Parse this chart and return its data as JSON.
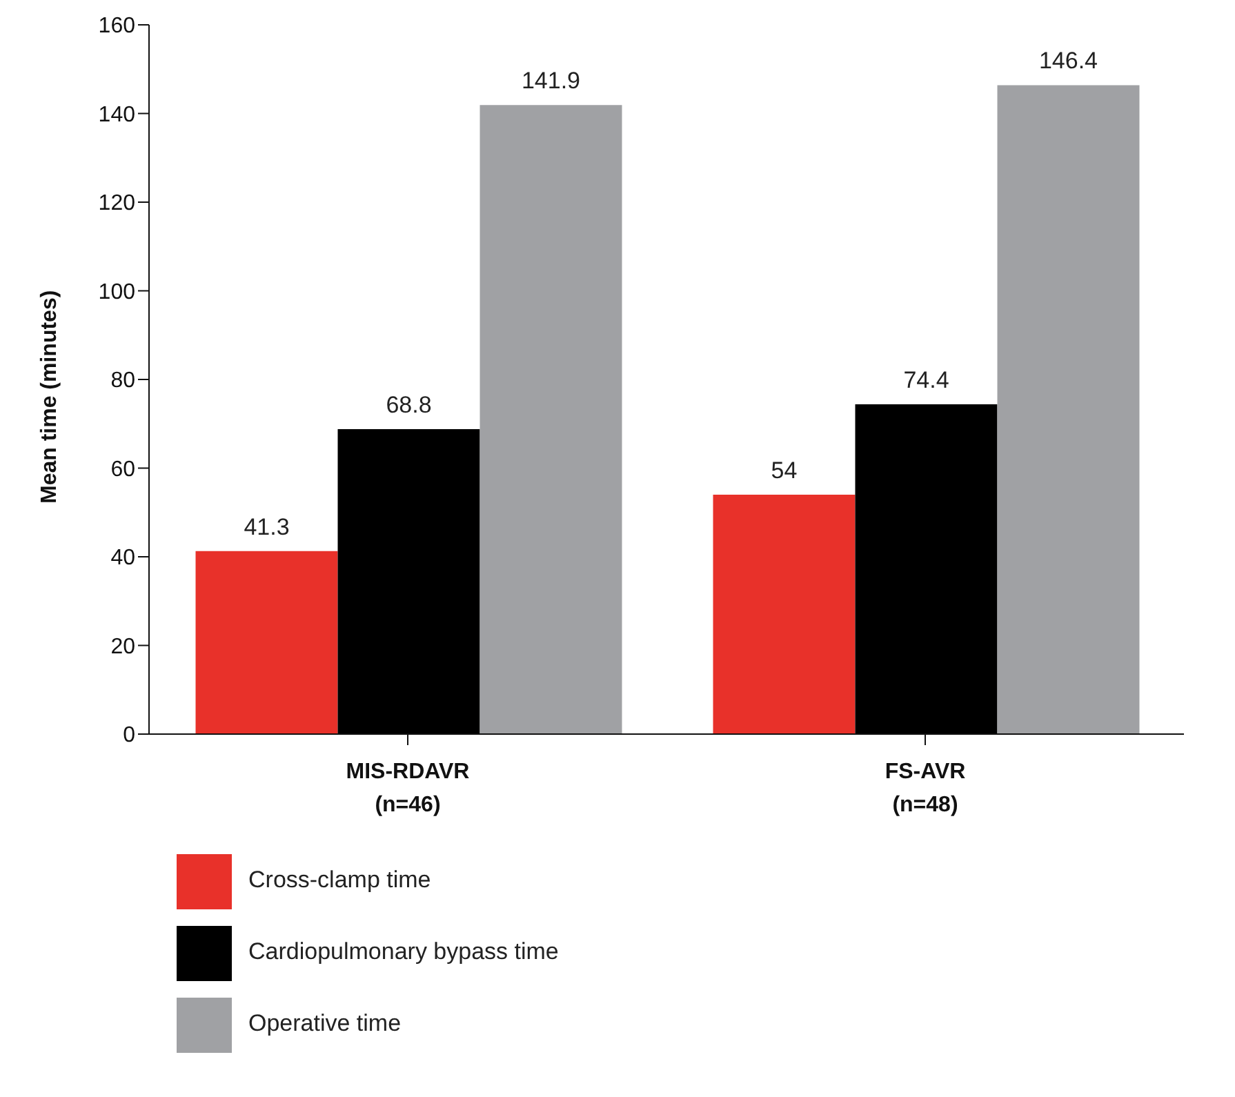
{
  "chart_data": {
    "type": "bar",
    "ylabel": "Mean time (minutes)",
    "categories": [
      "MIS-RDAVR (n=46)",
      "FS-AVR (n=48)"
    ],
    "series": [
      {
        "name": "Cross-clamp time",
        "color": "#e8312a",
        "values": [
          41.3,
          54
        ]
      },
      {
        "name": "Cardiopulmonary bypass time",
        "color": "#000000",
        "values": [
          68.8,
          74.4
        ]
      },
      {
        "name": "Operative time",
        "color": "#a0a1a4",
        "values": [
          141.9,
          146.4
        ]
      }
    ],
    "ylim": [
      0,
      160
    ],
    "yticks": [
      0,
      20,
      40,
      60,
      80,
      100,
      120,
      140,
      160
    ],
    "grid": false,
    "legend": "bottom left",
    "data_labels": true
  }
}
